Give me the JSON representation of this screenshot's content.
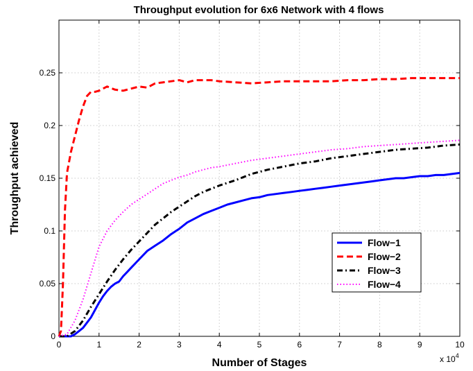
{
  "chart_data": {
    "type": "line",
    "title": "Throughput evolution for 6x6 Network with 4 flows",
    "xlabel": "Number of Stages",
    "ylabel": "Throughput achieved",
    "x_multiplier_label": "x 10",
    "x_multiplier_exp": "4",
    "xlim": [
      0,
      100000
    ],
    "ylim": [
      0,
      0.3
    ],
    "x_ticks": [
      0,
      10000,
      20000,
      30000,
      40000,
      50000,
      60000,
      70000,
      80000,
      90000,
      100000
    ],
    "x_tick_labels": [
      "0",
      "1",
      "2",
      "3",
      "4",
      "5",
      "6",
      "7",
      "8",
      "9",
      "10"
    ],
    "y_ticks": [
      0,
      0.05,
      0.1,
      0.15,
      0.2,
      0.25
    ],
    "y_tick_labels": [
      "0",
      "0.05",
      "0.1",
      "0.15",
      "0.2",
      "0.25"
    ],
    "grid": true,
    "legend_position": "lower-right",
    "series": [
      {
        "name": "Flow−1",
        "color": "#0000ff",
        "style": "solid",
        "x": [
          0,
          2000,
          3000,
          4000,
          5000,
          6000,
          7000,
          8000,
          9000,
          10000,
          11000,
          12000,
          13000,
          14000,
          15000,
          16000,
          17000,
          18000,
          19000,
          20000,
          22000,
          24000,
          26000,
          28000,
          30000,
          32000,
          34000,
          36000,
          38000,
          40000,
          42000,
          44000,
          46000,
          48000,
          50000,
          52000,
          54000,
          56000,
          58000,
          60000,
          62000,
          64000,
          66000,
          68000,
          70000,
          72000,
          74000,
          76000,
          78000,
          80000,
          82000,
          84000,
          86000,
          88000,
          90000,
          92000,
          94000,
          96000,
          98000,
          100000
        ],
        "y": [
          0,
          0,
          0,
          0.002,
          0.005,
          0.008,
          0.013,
          0.018,
          0.025,
          0.032,
          0.038,
          0.043,
          0.047,
          0.05,
          0.052,
          0.057,
          0.061,
          0.065,
          0.069,
          0.073,
          0.081,
          0.086,
          0.091,
          0.097,
          0.102,
          0.108,
          0.112,
          0.116,
          0.119,
          0.122,
          0.125,
          0.127,
          0.129,
          0.131,
          0.132,
          0.134,
          0.135,
          0.136,
          0.137,
          0.138,
          0.139,
          0.14,
          0.141,
          0.142,
          0.143,
          0.144,
          0.145,
          0.146,
          0.147,
          0.148,
          0.149,
          0.15,
          0.15,
          0.151,
          0.152,
          0.152,
          0.153,
          0.153,
          0.154,
          0.155
        ]
      },
      {
        "name": "Flow−2",
        "color": "#ff0000",
        "style": "dashed",
        "x": [
          0,
          500,
          1000,
          1500,
          2000,
          3000,
          4000,
          5000,
          6000,
          7000,
          8000,
          9000,
          10000,
          12000,
          14000,
          16000,
          18000,
          20000,
          22000,
          24000,
          26000,
          28000,
          30000,
          32000,
          34000,
          36000,
          38000,
          40000,
          44000,
          48000,
          52000,
          56000,
          60000,
          64000,
          68000,
          72000,
          76000,
          80000,
          84000,
          88000,
          92000,
          96000,
          100000
        ],
        "y": [
          0,
          0.005,
          0.05,
          0.12,
          0.155,
          0.175,
          0.19,
          0.205,
          0.218,
          0.228,
          0.232,
          0.232,
          0.233,
          0.237,
          0.234,
          0.233,
          0.235,
          0.237,
          0.236,
          0.24,
          0.241,
          0.242,
          0.243,
          0.241,
          0.243,
          0.243,
          0.243,
          0.242,
          0.241,
          0.24,
          0.241,
          0.242,
          0.242,
          0.242,
          0.242,
          0.243,
          0.243,
          0.244,
          0.244,
          0.245,
          0.245,
          0.245,
          0.245
        ]
      },
      {
        "name": "Flow−3",
        "color": "#000000",
        "style": "dashdot",
        "x": [
          0,
          2000,
          4000,
          6000,
          8000,
          10000,
          12000,
          14000,
          16000,
          18000,
          20000,
          22000,
          24000,
          26000,
          28000,
          30000,
          32000,
          34000,
          36000,
          38000,
          40000,
          44000,
          48000,
          52000,
          56000,
          60000,
          64000,
          68000,
          72000,
          76000,
          80000,
          84000,
          88000,
          92000,
          96000,
          100000
        ],
        "y": [
          0,
          0,
          0.005,
          0.015,
          0.028,
          0.04,
          0.052,
          0.063,
          0.073,
          0.082,
          0.09,
          0.098,
          0.106,
          0.112,
          0.118,
          0.123,
          0.128,
          0.133,
          0.137,
          0.14,
          0.143,
          0.148,
          0.154,
          0.158,
          0.161,
          0.164,
          0.166,
          0.169,
          0.171,
          0.173,
          0.175,
          0.177,
          0.178,
          0.179,
          0.181,
          0.182
        ]
      },
      {
        "name": "Flow−4",
        "color": "#ff00ff",
        "style": "dotted",
        "x": [
          0,
          2000,
          4000,
          6000,
          8000,
          10000,
          12000,
          14000,
          16000,
          18000,
          20000,
          22000,
          24000,
          26000,
          28000,
          30000,
          32000,
          34000,
          36000,
          38000,
          40000,
          44000,
          48000,
          52000,
          56000,
          60000,
          64000,
          68000,
          72000,
          76000,
          80000,
          84000,
          88000,
          92000,
          96000,
          100000
        ],
        "y": [
          0,
          0.002,
          0.015,
          0.035,
          0.06,
          0.085,
          0.1,
          0.11,
          0.118,
          0.125,
          0.13,
          0.135,
          0.14,
          0.145,
          0.148,
          0.151,
          0.153,
          0.156,
          0.158,
          0.16,
          0.161,
          0.164,
          0.167,
          0.169,
          0.171,
          0.173,
          0.175,
          0.177,
          0.178,
          0.18,
          0.181,
          0.182,
          0.183,
          0.184,
          0.185,
          0.186
        ]
      }
    ]
  }
}
